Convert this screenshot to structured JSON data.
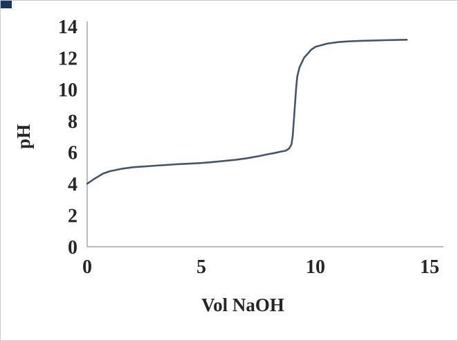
{
  "page": {
    "background": "#ffffff",
    "border_color": "#c9c9c9",
    "corner_color": "#17375e"
  },
  "chart_data": {
    "type": "line",
    "title": "",
    "xlabel": "Vol NaOH",
    "ylabel": "pH",
    "xlim": [
      0,
      15
    ],
    "ylim": [
      0,
      14
    ],
    "x_ticks": [
      0,
      5,
      10,
      15
    ],
    "y_ticks": [
      0,
      2,
      4,
      6,
      8,
      10,
      12,
      14
    ],
    "grid": false,
    "legend": "none",
    "line_color": "#44546a",
    "axis_color": "#a6a6a6",
    "text_color": "#262626",
    "series": [
      {
        "name": "pH",
        "points": [
          [
            0,
            4.0
          ],
          [
            0.3,
            4.3
          ],
          [
            0.7,
            4.65
          ],
          [
            1.0,
            4.8
          ],
          [
            1.5,
            4.95
          ],
          [
            2.0,
            5.05
          ],
          [
            2.5,
            5.1
          ],
          [
            3.0,
            5.15
          ],
          [
            3.5,
            5.2
          ],
          [
            4.0,
            5.25
          ],
          [
            4.5,
            5.28
          ],
          [
            5.0,
            5.32
          ],
          [
            5.5,
            5.38
          ],
          [
            6.0,
            5.45
          ],
          [
            6.5,
            5.52
          ],
          [
            7.0,
            5.62
          ],
          [
            7.5,
            5.75
          ],
          [
            8.0,
            5.9
          ],
          [
            8.2,
            5.95
          ],
          [
            8.5,
            6.05
          ],
          [
            8.7,
            6.1
          ],
          [
            8.85,
            6.25
          ],
          [
            8.95,
            6.5
          ],
          [
            9.0,
            7.0
          ],
          [
            9.05,
            8.0
          ],
          [
            9.1,
            9.0
          ],
          [
            9.15,
            10.0
          ],
          [
            9.2,
            10.8
          ],
          [
            9.3,
            11.4
          ],
          [
            9.5,
            12.0
          ],
          [
            9.8,
            12.5
          ],
          [
            10.0,
            12.7
          ],
          [
            10.5,
            12.9
          ],
          [
            11.0,
            13.0
          ],
          [
            11.5,
            13.05
          ],
          [
            12.0,
            13.08
          ],
          [
            13.0,
            13.12
          ],
          [
            14.0,
            13.15
          ]
        ]
      }
    ]
  }
}
